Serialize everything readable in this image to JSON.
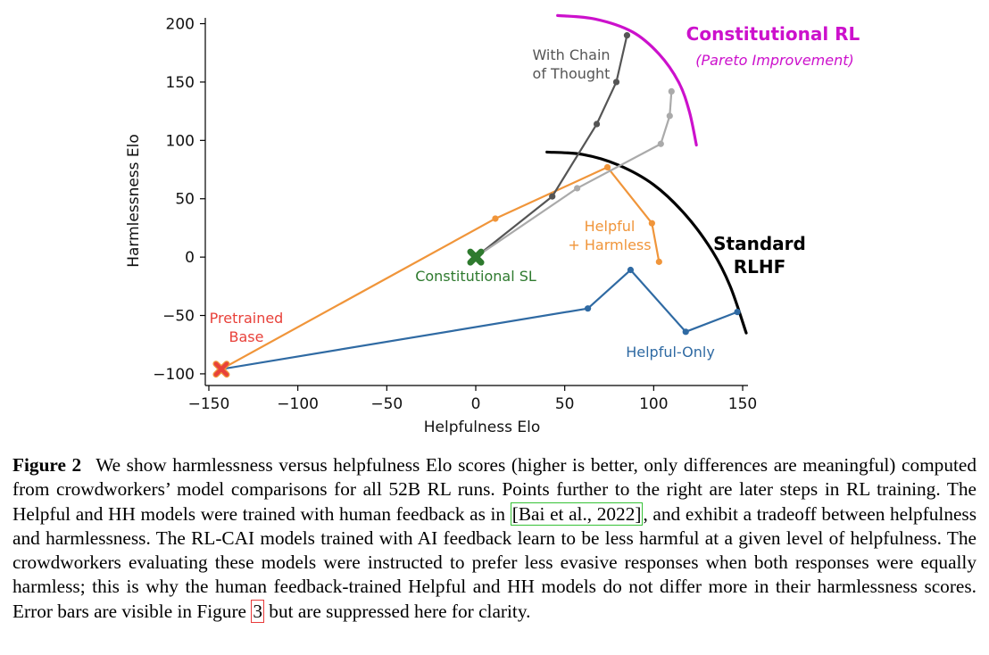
{
  "chart_data": {
    "type": "line",
    "xlabel": "Helpfulness Elo",
    "ylabel": "Harmlessness Elo",
    "xlim": [
      -152,
      153
    ],
    "ylim": [
      -110,
      205
    ],
    "xticks": [
      -150,
      -100,
      -50,
      0,
      50,
      100,
      150
    ],
    "yticks": [
      -100,
      -50,
      0,
      50,
      100,
      150,
      200
    ],
    "xtick_labels": [
      "−150",
      "−100",
      "−50",
      "0",
      "50",
      "100",
      "150"
    ],
    "ytick_labels": [
      "−100",
      "−50",
      "0",
      "50",
      "100",
      "150",
      "200"
    ],
    "grid": false,
    "series": [
      {
        "name": "Helpful-Only",
        "color": "#2f6aa3",
        "x": [
          -143,
          63,
          87,
          118,
          147
        ],
        "y": [
          -96,
          -44,
          -11,
          -64,
          -47
        ]
      },
      {
        "name": "Helpful + Harmless",
        "color": "#f0953a",
        "x": [
          -143,
          11,
          74,
          99,
          103
        ],
        "y": [
          -96,
          33,
          77,
          29,
          -4
        ]
      },
      {
        "name": "With Chain of Thought",
        "color": "#555555",
        "x": [
          0,
          43,
          68,
          79,
          85
        ],
        "y": [
          0,
          52,
          114,
          150,
          190
        ]
      },
      {
        "name": "",
        "color": "#aaaaaa",
        "x": [
          0,
          57,
          104,
          109,
          110
        ],
        "y": [
          0,
          59,
          97,
          121,
          142
        ]
      }
    ],
    "markers": [
      {
        "label": "Pretrained Base",
        "x": -143,
        "y": -96,
        "color": "#e8413a",
        "edge": "#f0953a"
      },
      {
        "label": "Constitutional SL",
        "x": 0,
        "y": 0,
        "color": "#2e7a2e",
        "edge": "#2e7a2e"
      }
    ],
    "frontiers": [
      {
        "name": "Standard RLHF",
        "color": "#000000",
        "points": [
          [
            40,
            90
          ],
          [
            60,
            88
          ],
          [
            80,
            79
          ],
          [
            100,
            62
          ],
          [
            118,
            36
          ],
          [
            133,
            5
          ],
          [
            143,
            -25
          ],
          [
            152,
            -65
          ]
        ]
      },
      {
        "name": "Constitutional RL",
        "color": "#cc11cc",
        "points": [
          [
            46,
            207
          ],
          [
            67,
            204
          ],
          [
            88,
            193
          ],
          [
            103,
            174
          ],
          [
            114,
            150
          ],
          [
            120,
            125
          ],
          [
            124,
            96
          ]
        ]
      }
    ],
    "annotations": {
      "cot_line1": "With Chain",
      "cot_line2": "of Thought",
      "crl_title": "Constitutional RL",
      "crl_sub": "(Pareto Improvement)",
      "hh_line1": "Helpful",
      "hh_line2": "+ Harmless",
      "std_line1": "Standard",
      "std_line2": "RLHF",
      "csl": "Constitutional SL",
      "pb_line1": "Pretrained",
      "pb_line2": "Base",
      "ho": "Helpful-Only"
    },
    "annotation_colors": {
      "cot": "#555555",
      "crl": "#cc11cc",
      "hh": "#f0953a",
      "std": "#000000",
      "csl": "#2e7a2e",
      "pb": "#e8413a",
      "ho": "#2f6aa3"
    }
  },
  "caption": {
    "label": "Figure 2",
    "text_before_cite": "We show harmlessness versus helpfulness Elo scores (higher is better, only differences are meaningful) computed from crowdworkers’ model comparisons for all 52B RL runs. Points further to the right are later steps in RL training. The Helpful and HH models were trained with human feedback as in ",
    "cite": "[Bai et al., 2022]",
    "text_after_cite": ", and exhibit a tradeoff between helpfulness and harmlessness. The RL-CAI models trained with AI feedback learn to be less harmful at a given level of helpfulness. The crowdworkers evaluating these models were instructed to prefer less evasive responses when both responses were equally harmless; this is why the human feedback-trained Helpful and HH models do not differ more in their harmlessness scores. Error bars are visible in Figure ",
    "ref": "3",
    "text_end": " but are suppressed here for clarity."
  }
}
